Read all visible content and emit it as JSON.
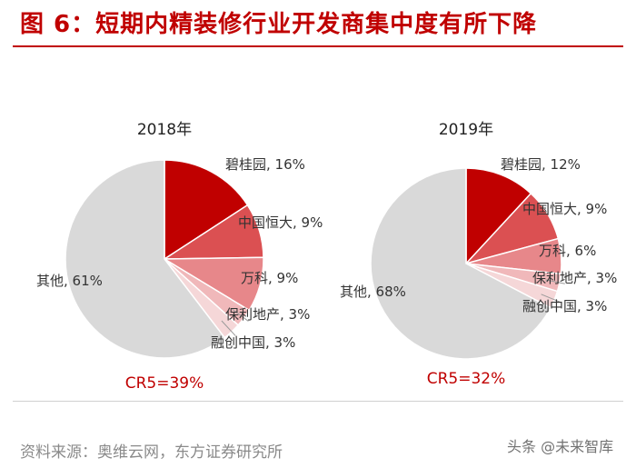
{
  "title": "图 6：短期内精装修行业开发商集中度有所下降",
  "source": "资料来源：奥维云网，东方证券研究所",
  "watermark": "头条 @未来智库",
  "chart_data": [
    {
      "type": "pie",
      "title": "2018年",
      "slices": [
        {
          "label": "碧桂园, 16%",
          "value": 16,
          "color": "#c00000"
        },
        {
          "label": "中国恒大, 9%",
          "value": 9,
          "color": "#db5052"
        },
        {
          "label": "万科, 9%",
          "value": 9,
          "color": "#e7878a"
        },
        {
          "label": "保利地产, 3%",
          "value": 3,
          "color": "#f0b8ba"
        },
        {
          "label": "融创中国, 3%",
          "value": 3,
          "color": "#f5d7d8"
        },
        {
          "label": "其他, 61%",
          "value": 61,
          "color": "#d9d9d9"
        }
      ],
      "annotation": "CR5=39%"
    },
    {
      "type": "pie",
      "title": "2019年",
      "slices": [
        {
          "label": "碧桂园, 12%",
          "value": 12,
          "color": "#c00000"
        },
        {
          "label": "中国恒大, 9%",
          "value": 9,
          "color": "#db5052"
        },
        {
          "label": "万科, 6%",
          "value": 6,
          "color": "#e7878a"
        },
        {
          "label": "保利地产, 3%",
          "value": 3,
          "color": "#f0b8ba"
        },
        {
          "label": "融创中国, 3%",
          "value": 3,
          "color": "#f5d7d8"
        },
        {
          "label": "其他, 68%",
          "value": 68,
          "color": "#d9d9d9"
        }
      ],
      "annotation": "CR5=32%"
    }
  ]
}
